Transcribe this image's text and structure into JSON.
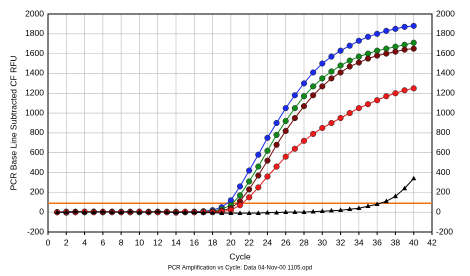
{
  "chart_data": {
    "type": "line",
    "xlabel": "Cycle",
    "ylabel": "PCR Base Line Subtracted CF RFU",
    "subtitle": "PCR Amplification vs Cycle: Data 04-Nov-00 1105.opd",
    "x": [
      1,
      2,
      3,
      4,
      5,
      6,
      7,
      8,
      9,
      10,
      11,
      12,
      13,
      14,
      15,
      16,
      17,
      18,
      19,
      20,
      21,
      22,
      23,
      24,
      25,
      26,
      27,
      28,
      29,
      30,
      31,
      32,
      33,
      34,
      35,
      36,
      37,
      38,
      39,
      40
    ],
    "series": [
      {
        "color": "#1a2cf0",
        "marker": "circle",
        "values": [
          0,
          -5,
          0,
          5,
          0,
          0,
          5,
          0,
          0,
          5,
          0,
          5,
          0,
          -5,
          0,
          5,
          10,
          20,
          50,
          120,
          260,
          420,
          580,
          750,
          900,
          1050,
          1180,
          1300,
          1410,
          1500,
          1570,
          1630,
          1680,
          1730,
          1770,
          1800,
          1830,
          1850,
          1870,
          1880
        ]
      },
      {
        "color": "#0e8a18",
        "marker": "circle",
        "values": [
          0,
          0,
          5,
          0,
          5,
          0,
          0,
          5,
          0,
          0,
          5,
          0,
          0,
          5,
          0,
          0,
          5,
          10,
          30,
          70,
          170,
          310,
          460,
          620,
          780,
          920,
          1050,
          1170,
          1270,
          1350,
          1420,
          1480,
          1530,
          1570,
          1600,
          1630,
          1650,
          1670,
          1690,
          1710
        ]
      },
      {
        "color": "#7a0a0a",
        "marker": "circle",
        "values": [
          0,
          5,
          0,
          0,
          5,
          0,
          5,
          0,
          5,
          0,
          0,
          0,
          5,
          0,
          0,
          0,
          0,
          5,
          15,
          40,
          110,
          230,
          370,
          520,
          680,
          820,
          950,
          1070,
          1180,
          1270,
          1350,
          1410,
          1470,
          1510,
          1550,
          1580,
          1600,
          1620,
          1640,
          1650
        ]
      },
      {
        "color": "#f01a1a",
        "marker": "circle",
        "values": [
          0,
          0,
          0,
          5,
          0,
          5,
          0,
          0,
          0,
          5,
          0,
          0,
          0,
          0,
          5,
          0,
          0,
          0,
          5,
          20,
          70,
          150,
          250,
          360,
          460,
          560,
          640,
          720,
          790,
          850,
          900,
          950,
          1000,
          1050,
          1090,
          1130,
          1170,
          1200,
          1230,
          1250
        ]
      },
      {
        "color": "#000000",
        "marker": "triangle",
        "values": [
          0,
          0,
          5,
          0,
          0,
          5,
          0,
          0,
          5,
          0,
          0,
          5,
          0,
          0,
          0,
          0,
          -5,
          -5,
          -10,
          -10,
          -10,
          -10,
          -10,
          -5,
          -5,
          0,
          0,
          0,
          5,
          10,
          15,
          20,
          30,
          40,
          60,
          80,
          110,
          160,
          240,
          340
        ]
      }
    ],
    "threshold": 90,
    "threshold_color": "#f07010",
    "xlim": [
      0,
      42
    ],
    "xticks": [
      0,
      2,
      4,
      6,
      8,
      10,
      12,
      14,
      16,
      18,
      20,
      22,
      24,
      26,
      28,
      30,
      32,
      34,
      36,
      38,
      40,
      42
    ],
    "ylim": [
      -200,
      2000
    ],
    "yticks": [
      -200,
      0,
      200,
      400,
      600,
      800,
      1000,
      1200,
      1400,
      1600,
      1800,
      2000
    ],
    "grid": true
  }
}
